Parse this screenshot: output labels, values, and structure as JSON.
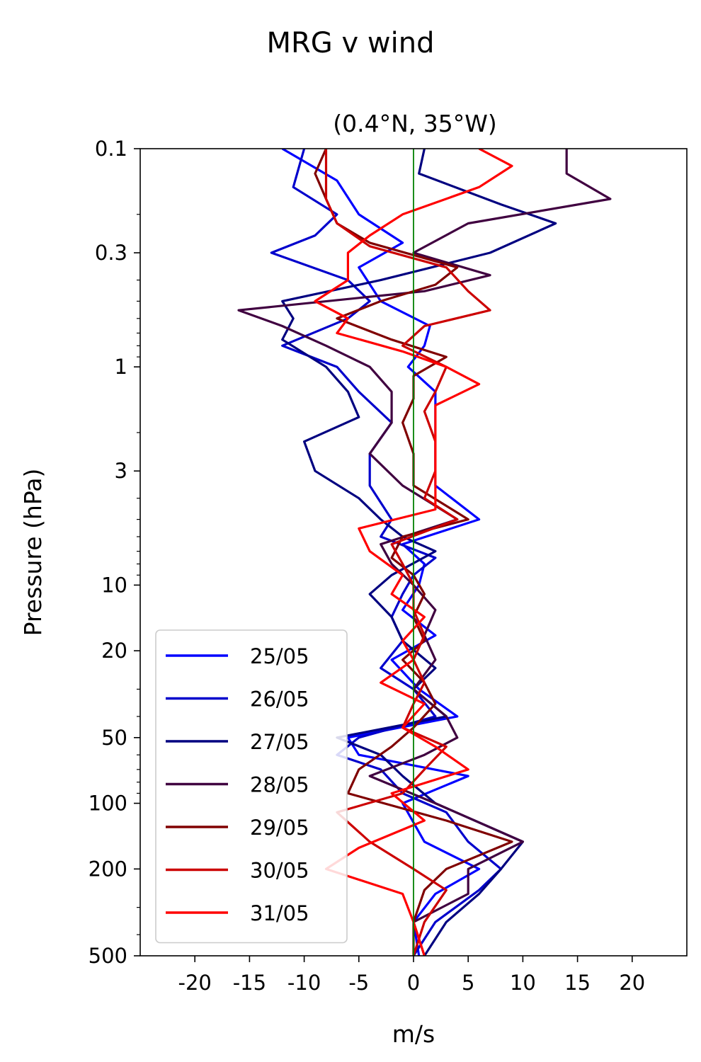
{
  "chart_data": {
    "type": "line",
    "title": "MRG v wind",
    "subtitle": "(0.4°N, 35°W)",
    "xlabel": "m/s",
    "ylabel": "Pressure (hPa)",
    "xlim": [
      -25,
      25
    ],
    "ylim": [
      500,
      0.1
    ],
    "yscale": "log",
    "xticks": [
      -20,
      -15,
      -10,
      -5,
      0,
      5,
      10,
      15,
      20
    ],
    "xtick_labels": [
      "-20",
      "-15",
      "-10",
      "-5",
      "0",
      "5",
      "10",
      "15",
      "20"
    ],
    "yticks": [
      0.1,
      0.3,
      1,
      3,
      10,
      20,
      50,
      100,
      200,
      500
    ],
    "ytick_labels": [
      "0.1",
      "0.3",
      "1",
      "3",
      "10",
      "20",
      "50",
      "100",
      "200",
      "500"
    ],
    "zero_line_color": "#008000",
    "legend_position": "lower-left",
    "grid": false,
    "series": [
      {
        "name": "25/05",
        "color": "#0000ff",
        "p": [
          0.1,
          0.14,
          0.2,
          0.27,
          0.35,
          0.5,
          0.65,
          0.8,
          1.0,
          1.3,
          2.0,
          3.5,
          5,
          6.5,
          8,
          10,
          13,
          17,
          22,
          30,
          40,
          50,
          60,
          75,
          100,
          150,
          200,
          260,
          350,
          500
        ],
        "v": [
          -12,
          -7,
          -5,
          -1,
          -5,
          -3,
          1.5,
          1,
          -0.5,
          2,
          2,
          2,
          6,
          -1,
          1,
          0.5,
          -1,
          2,
          -2,
          0.5,
          4,
          -6,
          -5,
          5,
          -1,
          1,
          6,
          2,
          0,
          0.5
        ]
      },
      {
        "name": "26/05",
        "color": "#0000cc",
        "p": [
          0.1,
          0.15,
          0.2,
          0.25,
          0.3,
          0.4,
          0.5,
          0.6,
          0.8,
          1.0,
          1.3,
          1.8,
          2.5,
          3.5,
          5,
          6,
          7.5,
          9,
          11,
          14,
          18,
          24,
          30,
          40,
          50,
          60,
          70,
          90,
          110,
          150,
          200,
          250,
          350,
          500
        ],
        "v": [
          -10,
          -11,
          -7,
          -9,
          -13,
          -6,
          -4,
          -6,
          -12,
          -7,
          -5,
          -2,
          -4,
          -4,
          -2,
          -3,
          2,
          0,
          -1,
          -2,
          -1,
          -3,
          0,
          2,
          -5,
          -7,
          -3,
          -1,
          3,
          5,
          8,
          6,
          2,
          0
        ]
      },
      {
        "name": "27/05",
        "color": "#000080",
        "p": [
          0.1,
          0.13,
          0.18,
          0.22,
          0.3,
          0.4,
          0.5,
          0.6,
          0.75,
          1.0,
          1.3,
          1.7,
          2.2,
          3.0,
          4,
          5,
          6,
          7,
          9,
          11,
          14,
          18,
          24,
          30,
          40,
          50,
          60,
          75,
          100,
          150,
          200,
          260,
          350,
          500
        ],
        "v": [
          1,
          0.5,
          8,
          13,
          7,
          -3,
          -12,
          -11,
          -12,
          -8,
          -6,
          -5,
          -10,
          -9,
          -5,
          -3,
          -1,
          2,
          -2,
          -4,
          -2,
          -1,
          2,
          0,
          3,
          -7,
          -3,
          -1,
          2,
          10,
          8,
          6,
          3,
          1
        ]
      },
      {
        "name": "28/05",
        "color": "#400040",
        "p": [
          0.1,
          0.13,
          0.17,
          0.22,
          0.3,
          0.38,
          0.45,
          0.55,
          0.65,
          0.8,
          1.0,
          1.3,
          1.8,
          2.5,
          3.5,
          5,
          6.5,
          8,
          10,
          13,
          17,
          22,
          30,
          40,
          50,
          60,
          75,
          100,
          150,
          200,
          260,
          350,
          500
        ],
        "v": [
          14,
          14,
          18,
          5,
          0,
          7,
          1,
          -16,
          -12,
          -8,
          -4,
          -2,
          -2,
          -4,
          -1,
          4,
          -3,
          -2,
          0,
          2,
          1,
          2,
          0,
          3,
          4,
          1,
          -4,
          2,
          10,
          5,
          5,
          0,
          1
        ]
      },
      {
        "name": "29/05",
        "color": "#800000",
        "p": [
          0.1,
          0.13,
          0.17,
          0.22,
          0.27,
          0.35,
          0.42,
          0.5,
          0.6,
          0.75,
          0.9,
          1.1,
          1.4,
          1.8,
          2.5,
          3.5,
          5,
          6,
          7.5,
          9,
          11,
          14,
          18,
          22,
          28,
          35,
          45,
          55,
          70,
          90,
          120,
          150,
          200,
          250,
          350,
          500
        ],
        "v": [
          -8,
          -9,
          -8,
          -7,
          -4,
          4,
          2,
          -3,
          -7,
          -2,
          3,
          0,
          0,
          -1,
          0,
          0,
          5,
          -1,
          -2,
          0,
          1,
          0,
          1,
          -1,
          1,
          2,
          0,
          -2,
          -5,
          -6,
          3,
          9,
          3,
          1,
          0,
          0
        ]
      },
      {
        "name": "30/05",
        "color": "#cc0000",
        "p": [
          0.1,
          0.13,
          0.17,
          0.22,
          0.28,
          0.35,
          0.45,
          0.55,
          0.65,
          0.8,
          1.0,
          1.3,
          1.6,
          2.2,
          3.0,
          4,
          5,
          6.5,
          8,
          10,
          13,
          17,
          22,
          28,
          35,
          45,
          55,
          70,
          90,
          110,
          150,
          200,
          250,
          350,
          500
        ],
        "v": [
          -8,
          -8,
          -8,
          -7,
          -4,
          3,
          5,
          7,
          1,
          -1,
          3,
          2,
          1,
          2,
          2,
          1,
          4,
          -2,
          -1,
          0,
          0,
          1,
          0,
          1,
          0,
          -1,
          3,
          1,
          -1,
          -7,
          -4,
          0,
          3,
          1,
          0
        ]
      },
      {
        "name": "31/05",
        "color": "#ff0000",
        "p": [
          0.1,
          0.12,
          0.15,
          0.2,
          0.25,
          0.3,
          0.4,
          0.5,
          0.6,
          0.7,
          0.85,
          1.0,
          1.2,
          1.5,
          2.0,
          3.0,
          4.5,
          5.5,
          7,
          9,
          11,
          14,
          18,
          22,
          28,
          35,
          45,
          55,
          70,
          90,
          120,
          160,
          200,
          260,
          350,
          500
        ],
        "v": [
          6,
          9,
          6,
          -1,
          -4,
          -6,
          -6,
          -9,
          -6,
          -7,
          -1,
          3,
          6,
          2,
          2,
          2,
          2,
          -5,
          -4,
          -1,
          -2,
          1,
          -1,
          0,
          -3,
          1,
          -1,
          2,
          5,
          -2,
          1,
          -5,
          -8,
          -1,
          0,
          1
        ]
      }
    ]
  }
}
